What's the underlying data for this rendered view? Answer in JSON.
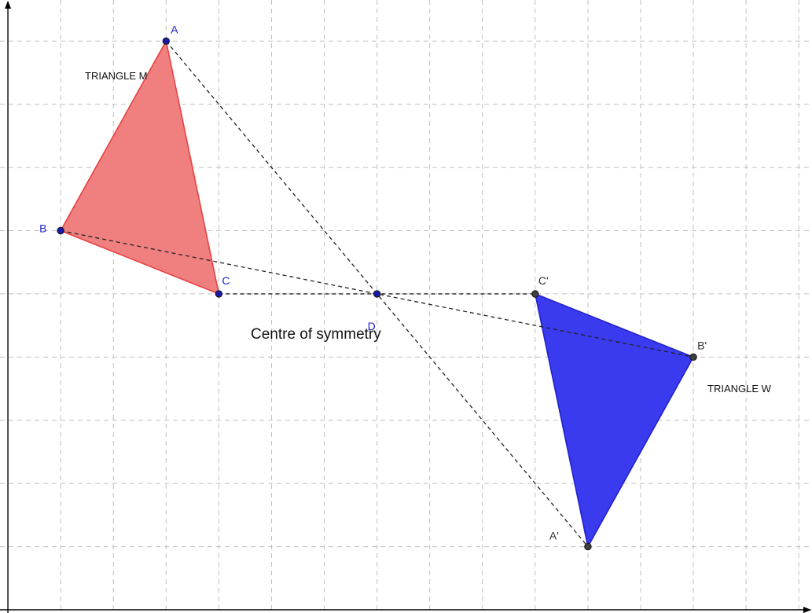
{
  "axes": {
    "x": {
      "min": -0.15,
      "max": 15.25,
      "ticks": [
        0,
        1,
        2,
        3,
        4,
        5,
        6,
        7,
        8,
        9,
        10,
        11,
        12,
        13,
        14
      ]
    },
    "y": {
      "min": -0.05,
      "max": 9.65,
      "ticks": [
        0,
        1,
        2,
        3,
        4,
        5,
        6,
        7,
        8,
        9
      ]
    },
    "grid": true
  },
  "colors": {
    "triangle_m_fill": "#f08080",
    "triangle_m_stroke": "#e84040",
    "triangle_w_fill": "#3a3aee",
    "triangle_w_stroke": "#2222cc",
    "original_point": "#1a1aaa",
    "original_label": "#2222cc",
    "image_point": "#404040",
    "image_label": "#333333"
  },
  "points": [
    {
      "name": "A",
      "x": 3,
      "y": 9,
      "kind": "original",
      "label_dx": 6,
      "label_dy": -10
    },
    {
      "name": "B",
      "x": 1,
      "y": 6,
      "kind": "original",
      "label_dx": -27,
      "label_dy": 2
    },
    {
      "name": "C",
      "x": 4,
      "y": 5,
      "kind": "original",
      "label_dx": 4,
      "label_dy": -12
    },
    {
      "name": "D",
      "x": 7,
      "y": 5,
      "kind": "original",
      "label_dx": -12,
      "label_dy": 46
    },
    {
      "name": "A'",
      "x": 11,
      "y": 1,
      "kind": "image",
      "label_dx": -49,
      "label_dy": -9
    },
    {
      "name": "B'",
      "x": 13,
      "y": 4,
      "kind": "image",
      "label_dx": 5,
      "label_dy": -10
    },
    {
      "name": "C'",
      "x": 10,
      "y": 5,
      "kind": "image",
      "label_dx": 4,
      "label_dy": -12
    }
  ],
  "triangles": [
    {
      "name": "triangle-m",
      "vertices": [
        "A",
        "B",
        "C"
      ],
      "fill_key": "triangle_m_fill",
      "stroke_key": "triangle_m_stroke"
    },
    {
      "name": "triangle-w",
      "vertices": [
        "A'",
        "B'",
        "C'"
      ],
      "fill_key": "triangle_w_fill",
      "stroke_key": "triangle_w_stroke"
    }
  ],
  "segments": [
    [
      "A",
      "A'"
    ],
    [
      "B",
      "B'"
    ],
    [
      "C",
      "C'"
    ]
  ],
  "labels": {
    "triangle_m": "TRIANGLE M",
    "triangle_w": "TRIANGLE W",
    "centre": "Centre of symmetry"
  }
}
